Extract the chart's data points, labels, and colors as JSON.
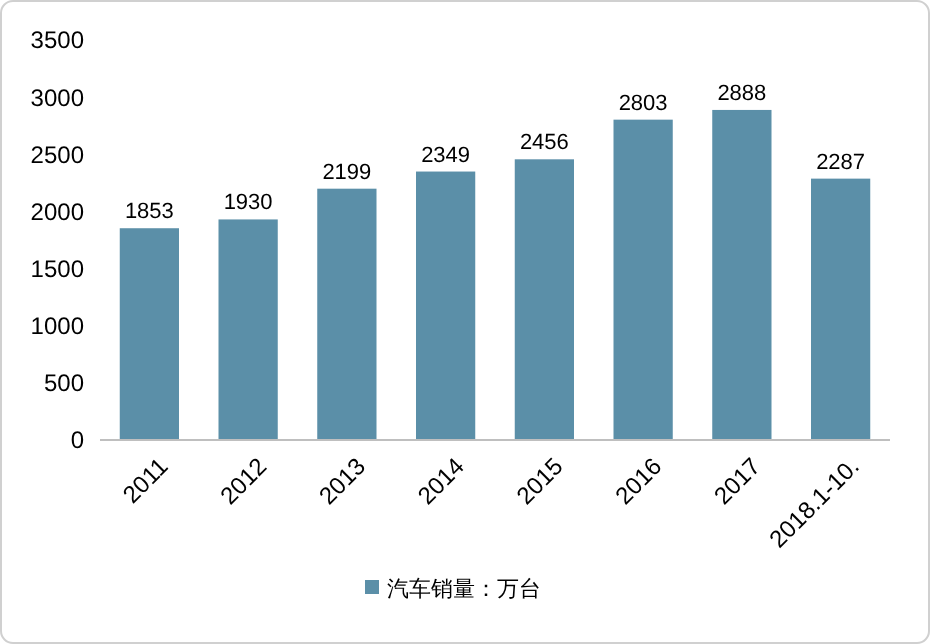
{
  "chart_data": {
    "type": "bar",
    "categories": [
      "2011",
      "2012",
      "2013",
      "2014",
      "2015",
      "2016",
      "2017",
      "2018.1-10."
    ],
    "series": [
      {
        "name": "汽车销量：万台",
        "color": "#5b8fa8",
        "values": [
          1853,
          1930,
          2199,
          2349,
          2456,
          2803,
          2888,
          2287
        ]
      }
    ],
    "ylim": [
      0,
      3500
    ],
    "yticks": [
      0,
      500,
      1000,
      1500,
      2000,
      2500,
      3000,
      3500
    ],
    "data_labels": true,
    "grid": false,
    "legend": "bottom"
  }
}
